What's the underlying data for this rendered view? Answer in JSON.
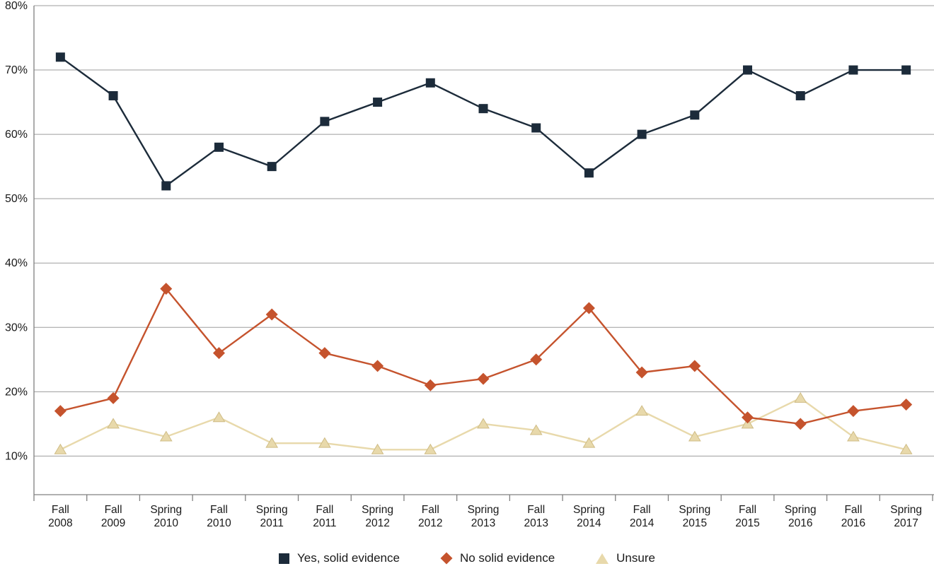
{
  "chart_data": {
    "type": "line",
    "categories": [
      "Fall 2008",
      "Fall 2009",
      "Spring 2010",
      "Fall 2010",
      "Spring 2011",
      "Fall 2011",
      "Spring 2012",
      "Fall 2012",
      "Spring 2013",
      "Fall 2013",
      "Spring 2014",
      "Fall 2014",
      "Spring 2015",
      "Fall 2015",
      "Spring 2016",
      "Fall 2016",
      "Spring 2017"
    ],
    "series": [
      {
        "name": "Yes, solid evidence",
        "marker": "square",
        "color": "#1c2b3a",
        "values": [
          72,
          66,
          52,
          58,
          55,
          62,
          65,
          68,
          64,
          61,
          54,
          60,
          63,
          70,
          66,
          70,
          70
        ]
      },
      {
        "name": "No solid evidence",
        "marker": "diamond",
        "color": "#c5532d",
        "values": [
          17,
          19,
          36,
          26,
          32,
          26,
          24,
          21,
          22,
          25,
          33,
          23,
          24,
          16,
          15,
          17,
          18
        ]
      },
      {
        "name": "Unsure",
        "marker": "triangle",
        "color": "#e8d9ab",
        "marker_stroke": "#cfbc85",
        "values": [
          11,
          15,
          13,
          16,
          12,
          12,
          11,
          11,
          15,
          14,
          12,
          17,
          13,
          15,
          19,
          13,
          11
        ]
      }
    ],
    "y_ticks": [
      10,
      20,
      30,
      40,
      50,
      60,
      70,
      80
    ],
    "y_tick_suffix": "%",
    "ylim": [
      4,
      80
    ],
    "grid": true,
    "legend_position": "bottom",
    "title": "",
    "xlabel": "",
    "ylabel": ""
  },
  "style": {
    "grid_color": "#9d9d9d",
    "axis_color": "#808080",
    "text_color": "#1a1a1a"
  }
}
